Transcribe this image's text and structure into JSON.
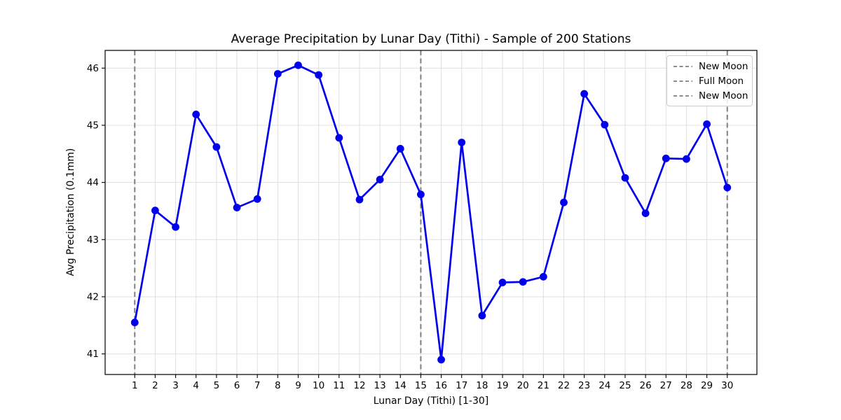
{
  "chart_data": {
    "type": "line",
    "title": "Average Precipitation by Lunar Day (Tithi) - Sample of 200 Stations",
    "xlabel": "Lunar Day (Tithi) [1-30]",
    "ylabel": "Avg Precipitation (0.1mm)",
    "x": [
      1,
      2,
      3,
      4,
      5,
      6,
      7,
      8,
      9,
      10,
      11,
      12,
      13,
      14,
      15,
      16,
      17,
      18,
      19,
      20,
      21,
      22,
      23,
      24,
      25,
      26,
      27,
      28,
      29,
      30
    ],
    "values": [
      41.55,
      43.51,
      43.22,
      45.19,
      44.62,
      43.56,
      43.71,
      45.9,
      46.05,
      45.88,
      44.78,
      43.7,
      44.05,
      44.59,
      43.79,
      40.9,
      44.7,
      41.67,
      42.25,
      42.26,
      42.35,
      43.65,
      45.55,
      45.01,
      44.08,
      43.46,
      44.42,
      44.41,
      45.02,
      43.91
    ],
    "series_name": "Avg precipitation",
    "series_color": "#0000ee",
    "marker": "circle",
    "xticks": [
      1,
      2,
      3,
      4,
      5,
      6,
      7,
      8,
      9,
      10,
      11,
      12,
      13,
      14,
      15,
      16,
      17,
      18,
      19,
      20,
      21,
      22,
      23,
      24,
      25,
      26,
      27,
      28,
      29,
      30
    ],
    "yticks": [
      41,
      42,
      43,
      44,
      45,
      46
    ],
    "xlim": [
      -0.45,
      31.45
    ],
    "ylim": [
      40.64,
      46.31
    ],
    "grid": true,
    "grid_color": "#e0e0e0",
    "vline_color": "#7f7f7f",
    "vlines": [
      {
        "x": 1,
        "label": "New Moon",
        "color": "#7f7f7f",
        "style": "dashed"
      },
      {
        "x": 15,
        "label": "Full Moon",
        "color": "#7f7f7f",
        "style": "dashed"
      },
      {
        "x": 30,
        "label": "New Moon",
        "color": "#7f7f7f",
        "style": "dashed"
      }
    ],
    "legend": {
      "position": "upper right",
      "entries": [
        "New Moon",
        "Full Moon",
        "New Moon"
      ]
    }
  }
}
